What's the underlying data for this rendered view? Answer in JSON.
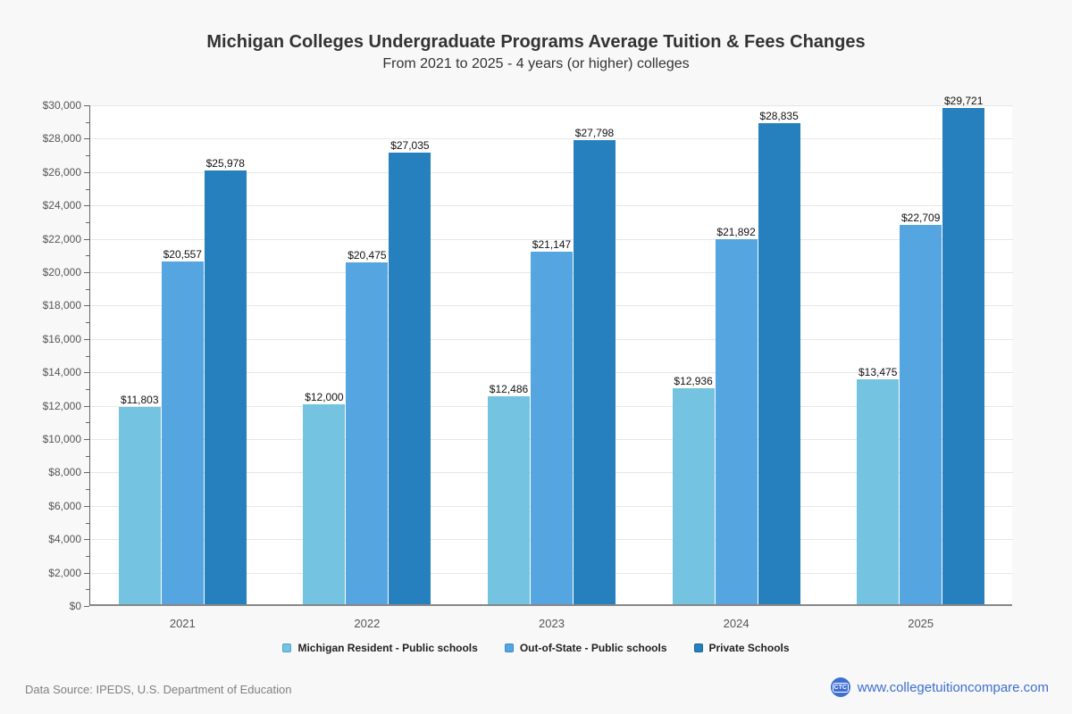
{
  "page": {
    "title": "Michigan Colleges Undergraduate Programs Average Tuition & Fees Changes",
    "subtitle": "From 2021 to 2025 - 4 years (or higher) colleges",
    "background_color": "#f8f8f8",
    "plot_background_color": "#ffffff"
  },
  "chart_data": {
    "type": "bar",
    "title": "Michigan Colleges Undergraduate Programs Average Tuition & Fees Changes",
    "subtitle": "From 2021 to 2025 - 4 years (or higher) colleges",
    "categories": [
      "2021",
      "2022",
      "2023",
      "2024",
      "2025"
    ],
    "series": [
      {
        "name": "Michigan Resident - Public schools",
        "color": "#73C3E1",
        "border_color": "#4FA3C4",
        "values": [
          11803,
          12000,
          12486,
          12936,
          13475
        ]
      },
      {
        "name": "Out-of-State - Public schools",
        "color": "#55A5E0",
        "border_color": "#3E87C6",
        "values": [
          20557,
          20475,
          21147,
          21892,
          22709
        ]
      },
      {
        "name": "Private Schools",
        "color": "#2780BE",
        "border_color": "#1E669A",
        "values": [
          25978,
          27035,
          27798,
          28835,
          29721
        ]
      }
    ],
    "data_labels": [
      [
        "$11,803",
        "$12,000",
        "$12,486",
        "$12,936",
        "$13,475"
      ],
      [
        "$20,557",
        "$20,475",
        "$21,147",
        "$21,892",
        "$22,709"
      ],
      [
        "$25,978",
        "$27,035",
        "$27,798",
        "$28,835",
        "$29,721"
      ]
    ],
    "xlabel": "",
    "ylabel": "",
    "ylim": [
      0,
      30000
    ],
    "y_major_step": 2000,
    "y_minor_step": 1000,
    "y_tick_prefix": "$",
    "grid": true,
    "legend_position": "bottom"
  },
  "footer": {
    "source": "Data Source: IPEDS, U.S. Department of Education",
    "site": "www.collegetuitioncompare.com",
    "logo_text": "CTC",
    "link_color": "#3E6FD3"
  }
}
